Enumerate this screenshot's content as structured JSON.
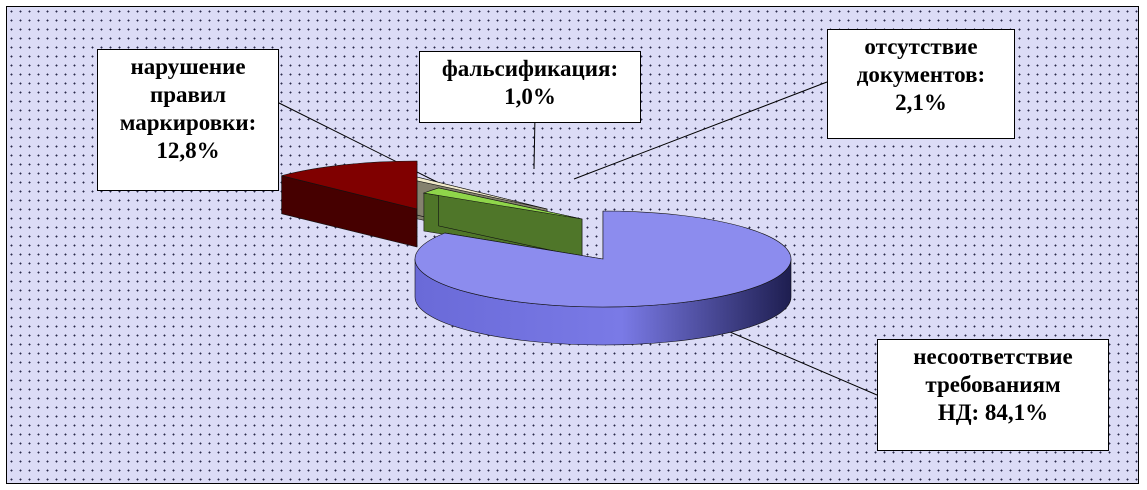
{
  "chart_data": {
    "type": "pie",
    "three_d": true,
    "exploded": true,
    "background": "dotted",
    "slices": [
      {
        "label_lines": [
          "несоответствие",
          "требованиям",
          "НД: 84,1%"
        ],
        "value": 84.1,
        "color": "#8c8cee"
      },
      {
        "label_lines": [
          "отсутствие",
          "документов:",
          "2,1%"
        ],
        "value": 2.1,
        "color": "#8fd64a"
      },
      {
        "label_lines": [
          "фальсификация:",
          "1,0%"
        ],
        "value": 1.0,
        "color": "#f0eac8"
      },
      {
        "label_lines": [
          "нарушение",
          "правил",
          "маркировки:",
          "12,8%"
        ],
        "value": 12.8,
        "color": "#800000"
      }
    ]
  }
}
